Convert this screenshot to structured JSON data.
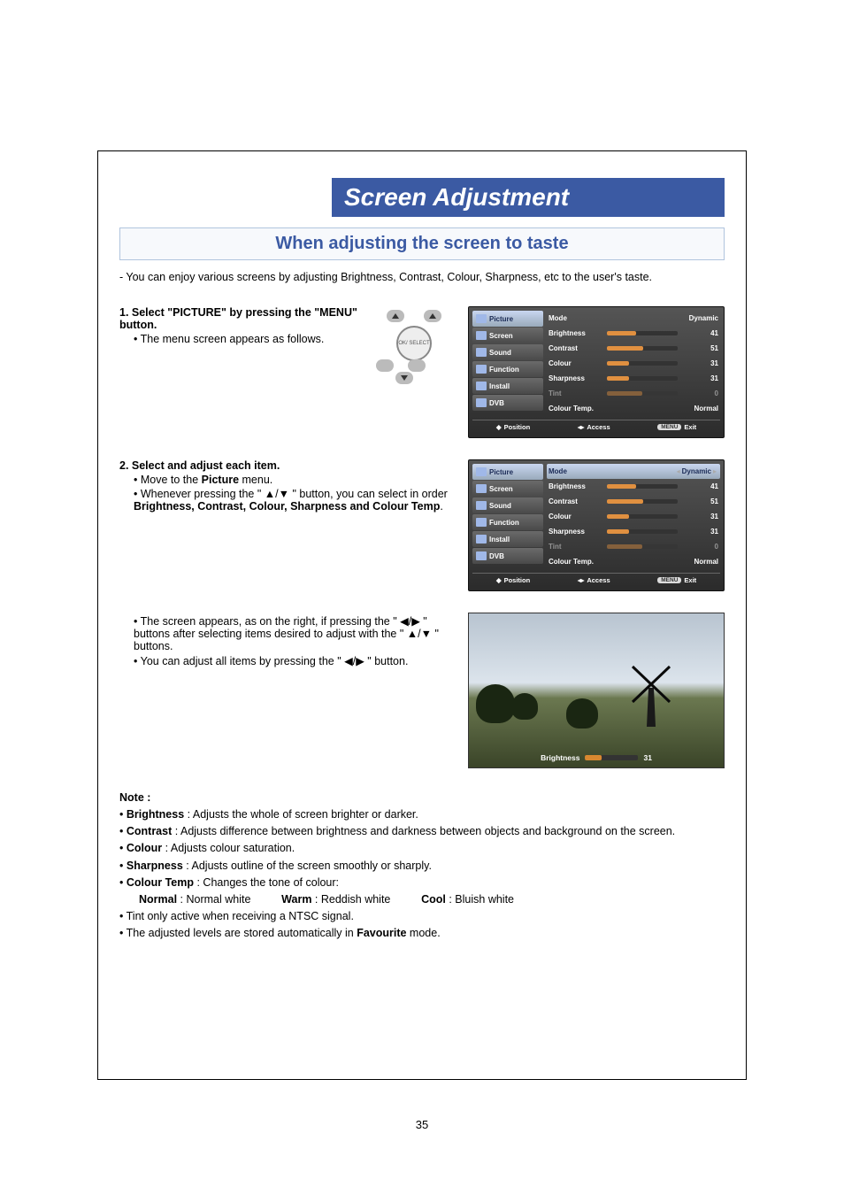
{
  "page": {
    "number": "35"
  },
  "title": "Screen Adjustment",
  "subtitle": "When adjusting the screen to taste",
  "intro": "- You can enjoy various screens by adjusting Brightness, Contrast, Colour, Sharpness, etc to the user's taste.",
  "step1": {
    "heading": "1. Select \"PICTURE\" by pressing the \"MENU\" button.",
    "bullet": "• The menu screen appears as follows."
  },
  "remote": {
    "center": "OK/\nSELECT"
  },
  "step2": {
    "heading": "2. Select and adjust each item.",
    "bullet1_pre": "• Move to the ",
    "bullet1_bold": "Picture",
    "bullet1_post": " menu.",
    "bullet2_pre": "• Whenever pressing the \" ",
    "bullet2_mid": " \" button, you can select in order ",
    "bullet2_bold": "Brightness, Contrast, Colour, Sharpness and Colour Temp",
    "bullet2_post": "."
  },
  "step3": {
    "bullet1_pre": "• The screen appears, as on the right, if pressing the \" ",
    "bullet1_mid": " \" buttons after selecting items desired to adjust with the \" ",
    "bullet1_post": " \" buttons.",
    "bullet2_pre": "• You can adjust all items by pressing the \" ",
    "bullet2_post": " \" button."
  },
  "osd_tabs": [
    "Picture",
    "Screen",
    "Sound",
    "Function",
    "Install",
    "DVB"
  ],
  "osd1": {
    "mode": {
      "label": "Mode",
      "value": "Dynamic"
    },
    "items": [
      {
        "label": "Brightness",
        "value": "41",
        "pct": 41
      },
      {
        "label": "Contrast",
        "value": "51",
        "pct": 51
      },
      {
        "label": "Colour",
        "value": "31",
        "pct": 31
      },
      {
        "label": "Sharpness",
        "value": "31",
        "pct": 31
      },
      {
        "label": "Tint",
        "value": "0",
        "pct": 50,
        "dim": true
      },
      {
        "label": "Colour Temp.",
        "value": "Normal",
        "text": true
      }
    ]
  },
  "osd2": {
    "mode": {
      "label": "Mode",
      "value": "Dynamic"
    },
    "items": [
      {
        "label": "Brightness",
        "value": "41",
        "pct": 41
      },
      {
        "label": "Contrast",
        "value": "51",
        "pct": 51
      },
      {
        "label": "Colour",
        "value": "31",
        "pct": 31
      },
      {
        "label": "Sharpness",
        "value": "31",
        "pct": 31
      },
      {
        "label": "Tint",
        "value": "0",
        "pct": 50,
        "dim": true
      },
      {
        "label": "Colour Temp.",
        "value": "Normal",
        "text": true
      }
    ]
  },
  "osd_footer": {
    "position": "Position",
    "access": "Access",
    "exit": "Exit",
    "menu": "MENU"
  },
  "photo_over": {
    "label": "Brightness",
    "value": "31",
    "pct": 31
  },
  "note": {
    "title": "Note :",
    "brightness_b": "Brightness",
    "brightness": " : Adjusts the whole of screen brighter or darker.",
    "contrast_b": "Contrast",
    "contrast": " : Adjusts difference between brightness and darkness between objects and background on the screen.",
    "colour_b": "Colour",
    "colour": " : Adjusts colour saturation.",
    "sharpness_b": "Sharpness",
    "sharpness": " : Adjusts outline of the screen smoothly or sharply.",
    "ct_b": "Colour Temp",
    "ct": " : Changes the tone of colour:",
    "normal_b": "Normal",
    "normal": " : Normal white",
    "warm_b": "Warm",
    "warm": " : Reddish white",
    "cool_b": "Cool",
    "cool": " : Bluish white",
    "tint": "• Tint only active when receiving a NTSC signal.",
    "fav_pre": "• The adjusted levels are stored automatically in ",
    "fav_b": "Favourite",
    "fav_post": " mode."
  },
  "colors": {
    "title_bg": "#3b5aa3",
    "subtitle_fg": "#3b5aa3",
    "bar_fill": "#e09040"
  }
}
